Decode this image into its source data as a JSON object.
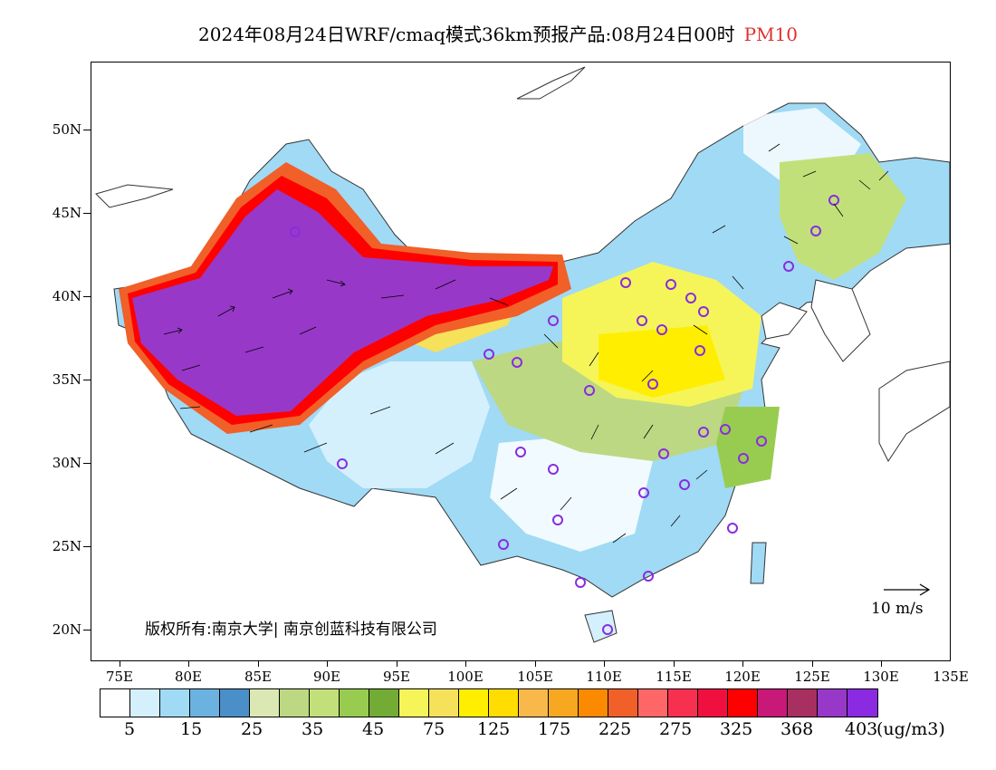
{
  "title": {
    "main": "2024年08月24日WRF/cmaq模式36km预报产品:08月24日00时",
    "variable": "PM10"
  },
  "axes": {
    "latitudes": [
      "50N",
      "45N",
      "40N",
      "35N",
      "30N",
      "25N",
      "20N"
    ],
    "longitudes": [
      "75E",
      "80E",
      "85E",
      "90E",
      "95E",
      "100E",
      "105E",
      "110E",
      "115E",
      "120E",
      "125E",
      "130E",
      "135E"
    ]
  },
  "copyright": "版权所有:南京大学| 南京创蓝科技有限公司",
  "wind_reference": "10 m/s",
  "colorbar": {
    "colors": [
      "#ffffff",
      "#d4f0fc",
      "#a0daf5",
      "#6cb2e0",
      "#4a8fc8",
      "#dbe8b4",
      "#bcd882",
      "#c2e07a",
      "#98cc50",
      "#72ac34",
      "#f5f55a",
      "#f5e15a",
      "#ffee00",
      "#ffdd00",
      "#f8b84a",
      "#f8a820",
      "#fb8a00",
      "#f06028",
      "#ff6666",
      "#f83050",
      "#f01040",
      "#ff0000",
      "#c81878",
      "#a83060",
      "#9838c8",
      "#8a2be2"
    ],
    "labels": [
      "5",
      "15",
      "25",
      "35",
      "45",
      "75",
      "125",
      "175",
      "225",
      "275",
      "325",
      "368",
      "403"
    ],
    "unit": "(ug/m3)"
  }
}
